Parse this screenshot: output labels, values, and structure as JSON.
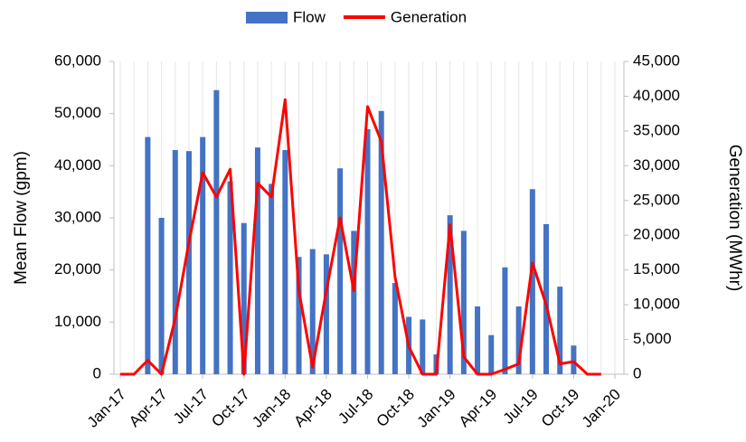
{
  "chart_data": {
    "type": "bar-line",
    "categories": [
      "Jan-17",
      null,
      null,
      "Apr-17",
      null,
      null,
      "Jul-17",
      null,
      null,
      "Oct-17",
      null,
      null,
      "Jan-18",
      null,
      null,
      "Apr-18",
      null,
      null,
      "Jul-18",
      null,
      null,
      "Oct-18",
      null,
      null,
      "Jan-19",
      null,
      null,
      "Apr-19",
      null,
      null,
      "Jul-19",
      null,
      null,
      "Oct-19",
      null,
      null,
      "Jan-20"
    ],
    "series": [
      {
        "name": "Flow",
        "type": "bar",
        "color": "#4472c4",
        "axis": "y",
        "values": [
          0,
          0,
          45500,
          30000,
          43000,
          42800,
          45500,
          54500,
          37000,
          29000,
          43500,
          36500,
          43000,
          22500,
          24000,
          23000,
          39500,
          27500,
          47000,
          50500,
          17500,
          11000,
          10500,
          3800,
          30500,
          27500,
          13000,
          7500,
          20500,
          13000,
          35500,
          28800,
          16800,
          5500,
          0,
          0,
          null
        ]
      },
      {
        "name": "Generation",
        "type": "line",
        "color": "#ff0000",
        "axis": "y2",
        "values": [
          0,
          0,
          2000,
          0,
          8000,
          19000,
          29000,
          25500,
          29500,
          0,
          27500,
          25500,
          39500,
          12000,
          1000,
          12000,
          22500,
          12000,
          38500,
          33500,
          14000,
          4000,
          0,
          0,
          21500,
          2500,
          0,
          0,
          700,
          1500,
          16000,
          10000,
          1500,
          1800,
          0,
          0,
          null
        ]
      }
    ],
    "ylabel": "Mean Flow (gpm)",
    "y2label": "Generation  (MWhr)",
    "ylim": [
      0,
      60000
    ],
    "yticks": [
      0,
      {
        "value": 10000,
        "label": "10,000"
      },
      {
        "value": 20000,
        "label": "20,000"
      },
      {
        "value": 30000,
        "label": "30,000"
      },
      {
        "value": 40000,
        "label": "40,000"
      },
      {
        "value": 50000,
        "label": "50,000"
      },
      {
        "value": 60000,
        "label": "60,000"
      }
    ],
    "y2lim": [
      0,
      45000
    ],
    "y2ticks": [
      0,
      {
        "value": 5000,
        "label": "5,000"
      },
      {
        "value": 10000,
        "label": "10,000"
      },
      {
        "value": 15000,
        "label": "15,000"
      },
      {
        "value": 20000,
        "label": "20,000"
      },
      {
        "value": 25000,
        "label": "25,000"
      },
      {
        "value": 30000,
        "label": "30,000"
      },
      {
        "value": 35000,
        "label": "35,000"
      },
      {
        "value": 40000,
        "label": "40,000"
      },
      {
        "value": 45000,
        "label": "45,000"
      }
    ],
    "legend": "top"
  }
}
